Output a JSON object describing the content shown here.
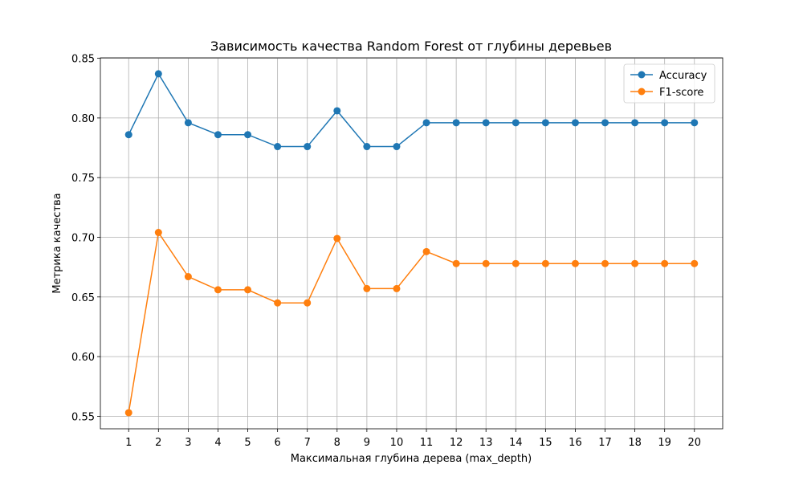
{
  "chart_data": {
    "type": "line",
    "title": "Зависимость качества Random Forest от глубины деревьев",
    "xlabel": "Максимальная глубина дерева (max_depth)",
    "ylabel": "Метрика качества",
    "x": [
      1,
      2,
      3,
      4,
      5,
      6,
      7,
      8,
      9,
      10,
      11,
      12,
      13,
      14,
      15,
      16,
      17,
      18,
      19,
      20
    ],
    "xlim": [
      0.05,
      20.95
    ],
    "ylim": [
      0.5395,
      0.8504
    ],
    "yticks": [
      0.55,
      0.6,
      0.65,
      0.7,
      0.75,
      0.8,
      0.85
    ],
    "ytick_labels": [
      "0.55",
      "0.60",
      "0.65",
      "0.70",
      "0.75",
      "0.80",
      "0.85"
    ],
    "xtick_labels": [
      "1",
      "2",
      "3",
      "4",
      "5",
      "6",
      "7",
      "8",
      "9",
      "10",
      "11",
      "12",
      "13",
      "14",
      "15",
      "16",
      "17",
      "18",
      "19",
      "20"
    ],
    "grid": true,
    "legend_position": "top-right",
    "series": [
      {
        "name": "Accuracy",
        "color": "#1f77b4",
        "marker": "circle",
        "values": [
          0.786,
          0.837,
          0.796,
          0.786,
          0.786,
          0.776,
          0.776,
          0.806,
          0.776,
          0.776,
          0.796,
          0.796,
          0.796,
          0.796,
          0.796,
          0.796,
          0.796,
          0.796,
          0.796,
          0.796
        ]
      },
      {
        "name": "F1-score",
        "color": "#ff7f0e",
        "marker": "circle",
        "values": [
          0.553,
          0.704,
          0.667,
          0.656,
          0.656,
          0.645,
          0.645,
          0.699,
          0.657,
          0.657,
          0.688,
          0.678,
          0.678,
          0.678,
          0.678,
          0.678,
          0.678,
          0.678,
          0.678,
          0.678
        ]
      }
    ]
  }
}
